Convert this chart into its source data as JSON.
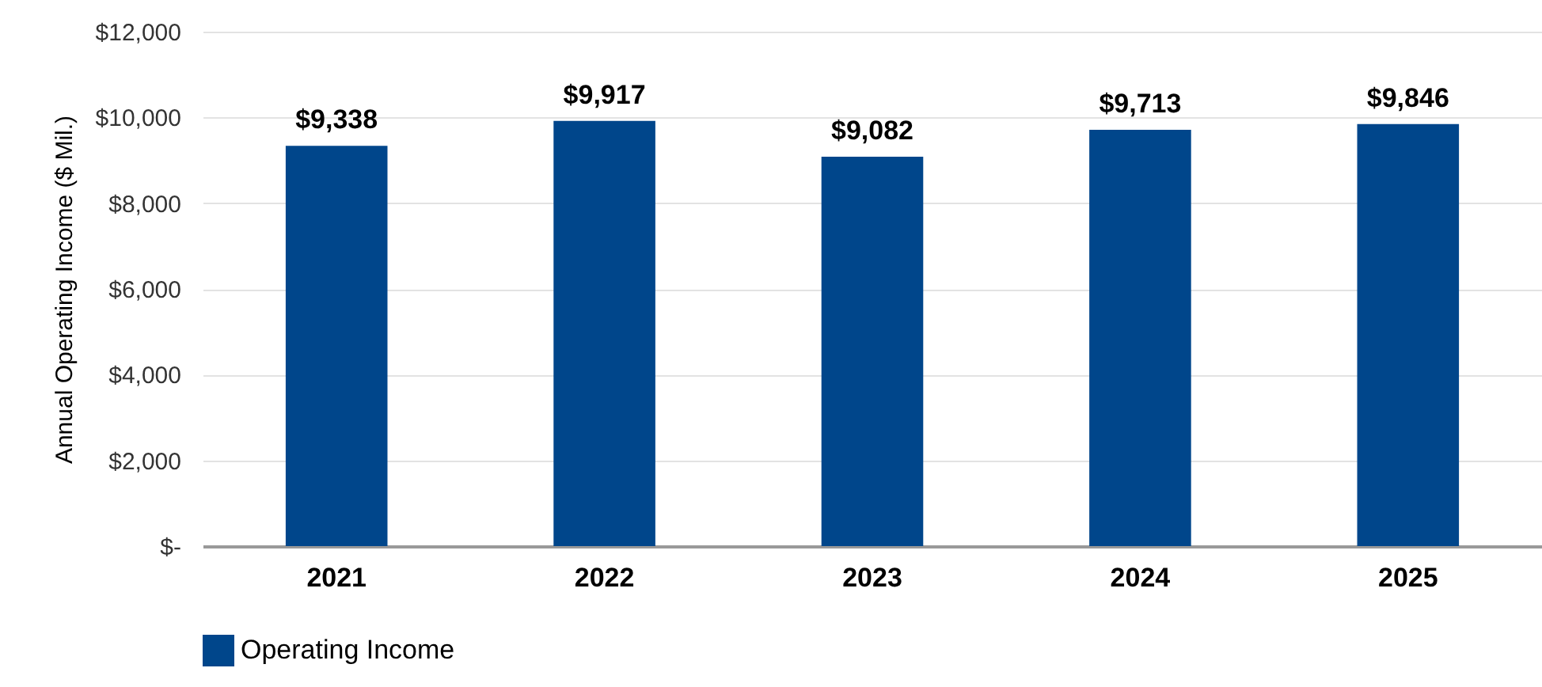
{
  "chart_data": {
    "type": "bar",
    "ylabel": "Annual Operating Income ($ Mil.)",
    "categories": [
      "2021",
      "2022",
      "2023",
      "2024",
      "2025"
    ],
    "series": [
      {
        "name": "Operating Income",
        "color": "#00468b",
        "values": [
          9338,
          9917,
          9082,
          9713,
          9846
        ],
        "value_labels": [
          "$9,338",
          "$9,917",
          "$9,082",
          "$9,713",
          "$9,846"
        ]
      }
    ],
    "ylim": [
      0,
      12000
    ],
    "yticks": [
      {
        "value": 0,
        "label": "$-"
      },
      {
        "value": 2000,
        "label": "$2,000"
      },
      {
        "value": 4000,
        "label": "$4,000"
      },
      {
        "value": 6000,
        "label": "$6,000"
      },
      {
        "value": 8000,
        "label": "$8,000"
      },
      {
        "value": 10000,
        "label": "$10,000"
      },
      {
        "value": 12000,
        "label": "$12,000"
      }
    ],
    "grid": "y",
    "legend": "bottom"
  }
}
